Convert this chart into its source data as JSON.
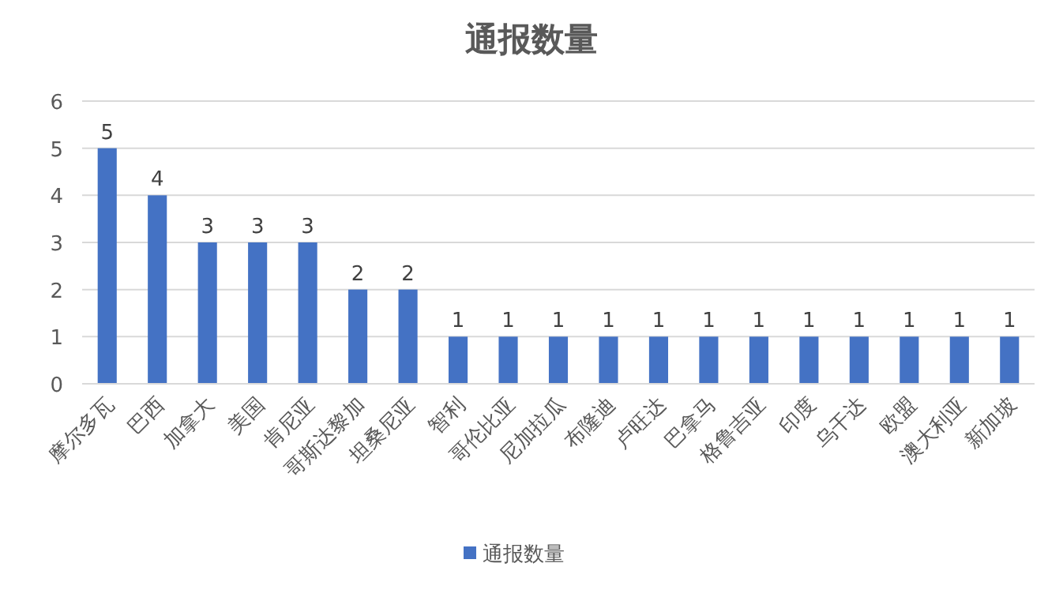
{
  "chart_data": {
    "type": "bar",
    "title": "通报数量",
    "categories": [
      "摩尔多瓦",
      "巴西",
      "加拿大",
      "美国",
      "肯尼亚",
      "哥斯达黎加",
      "坦桑尼亚",
      "智利",
      "哥伦比亚",
      "尼加拉瓜",
      "布隆迪",
      "卢旺达",
      "巴拿马",
      "格鲁吉亚",
      "印度",
      "乌干达",
      "欧盟",
      "澳大利亚",
      "新加坡"
    ],
    "series": [
      {
        "name": "通报数量",
        "color": "#4472c4",
        "values": [
          5,
          4,
          3,
          3,
          3,
          2,
          2,
          1,
          1,
          1,
          1,
          1,
          1,
          1,
          1,
          1,
          1,
          1,
          1
        ]
      }
    ],
    "ylim": [
      0,
      6
    ],
    "yticks": [
      0,
      1,
      2,
      3,
      4,
      5,
      6
    ],
    "grid": "y",
    "legend": "bottom",
    "data_labels": true
  }
}
